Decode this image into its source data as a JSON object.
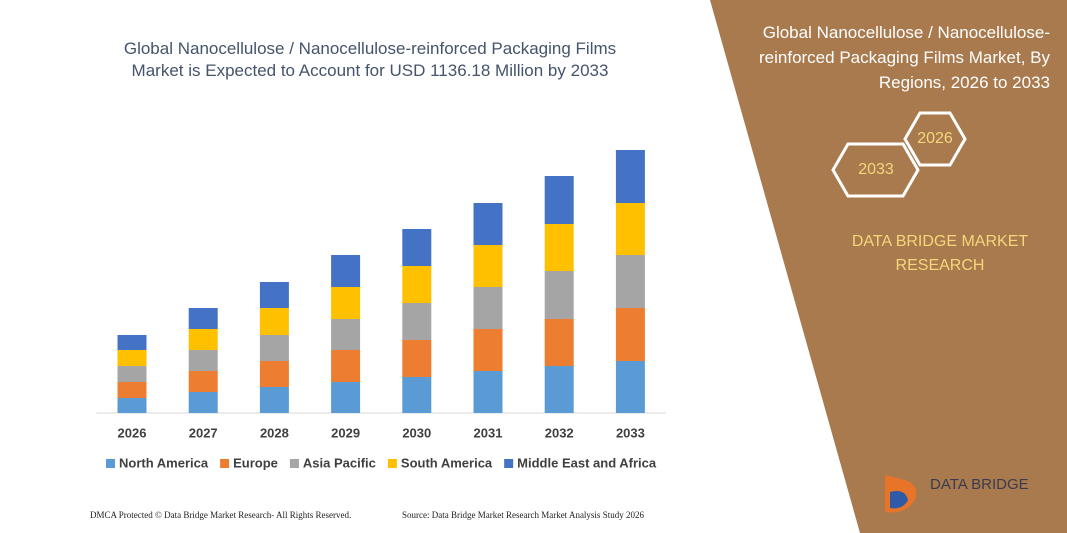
{
  "chart_data": {
    "type": "stacked-bar",
    "title": "Global Nanocellulose / Nanocellulose-reinforced Packaging Films Market is Expected to Account for USD 1136.18 Million by 2033",
    "categories": [
      "2026",
      "2027",
      "2028",
      "2029",
      "2030",
      "2031",
      "2032",
      "2033"
    ],
    "series": [
      {
        "name": "North America",
        "color": "#5b9bd5",
        "values": [
          15,
          21,
          26,
          31,
          36,
          42,
          47,
          52
        ]
      },
      {
        "name": "Europe",
        "color": "#ed7d31",
        "values": [
          16,
          21,
          26,
          32,
          37,
          42,
          47,
          53
        ]
      },
      {
        "name": "Asia Pacific",
        "color": "#a5a5a5",
        "values": [
          16,
          21,
          26,
          31,
          37,
          42,
          48,
          53
        ]
      },
      {
        "name": "South America",
        "color": "#ffc000",
        "values": [
          16,
          21,
          27,
          32,
          37,
          42,
          47,
          52
        ]
      },
      {
        "name": "Middle East and Africa",
        "color": "#4472c4",
        "values": [
          15,
          21,
          26,
          32,
          37,
          42,
          48,
          53
        ]
      }
    ],
    "ylim": [
      0,
      270
    ],
    "legend": "bottom"
  },
  "panel": {
    "title": "Global Nanocellulose / Nanocellulose-reinforced Packaging Films Market, By Regions, 2026 to 2033",
    "hex_start": "2026",
    "hex_end": "2033",
    "brand": "DATA BRIDGE MARKET RESEARCH",
    "logo": "DATA BRIDGE"
  },
  "footer": {
    "left": "DMCA Protected © Data Bridge Market Research- All Rights Reserved.",
    "right": "Source: Data Bridge Market Research Market Analysis Study 2026"
  }
}
